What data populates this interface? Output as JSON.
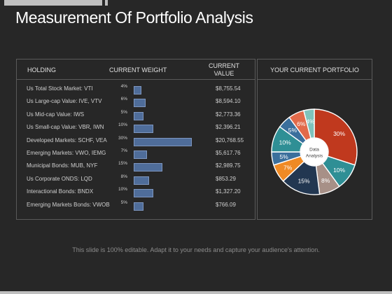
{
  "title": "Measurement Of Portfolio Analysis",
  "table": {
    "headers": {
      "holding": "HOLDING",
      "weight": "CURRENT WEIGHT",
      "value_line1": "CURRENT",
      "value_line2": "VALUE"
    },
    "rows": [
      {
        "holding": "Us Total Stock Market: VTI",
        "weight_label": "4%",
        "weight": 4,
        "value": "$8,755.54"
      },
      {
        "holding": "Us Large-cap Value: IVE, VTV",
        "weight_label": "6%",
        "weight": 6,
        "value": "$8,594.10"
      },
      {
        "holding": "Us Mid-cap Value: IWS",
        "weight_label": "5%",
        "weight": 5,
        "value": "$2,773.36"
      },
      {
        "holding": "Us Small-cap Value: VBR, IWN",
        "weight_label": "10%",
        "weight": 10,
        "value": "$2,396.21"
      },
      {
        "holding": "Developed Markets: SCHF, VEA",
        "weight_label": "30%",
        "weight": 30,
        "value": "$20,768.55"
      },
      {
        "holding": "Emerging Markets: VWO, IEMG",
        "weight_label": "7%",
        "weight": 7,
        "value": "$5,617.76"
      },
      {
        "holding": "Municipal Bonds: MUB, NYF",
        "weight_label": "15%",
        "weight": 15,
        "value": "$2,989.75"
      },
      {
        "holding": "Us Corporate ONDS: LQD",
        "weight_label": "8%",
        "weight": 8,
        "value": "$853.29"
      },
      {
        "holding": "Interactional Bonds: BNDX",
        "weight_label": "10%",
        "weight": 10,
        "value": "$1,327.20"
      },
      {
        "holding": "Emerging Markets Bonds: VWOB",
        "weight_label": "5%",
        "weight": 5,
        "value": "$766.09"
      }
    ]
  },
  "portfolio": {
    "header": "YOUR CURRENT PORTFOLIO",
    "center_line1": "Data",
    "center_line2": "Analysis"
  },
  "chart_data": [
    {
      "type": "bar",
      "orientation": "horizontal",
      "categories": [
        "Us Total Stock Market: VTI",
        "Us Large-cap Value: IVE, VTV",
        "Us Mid-cap Value: IWS",
        "Us Small-cap Value: VBR, IWN",
        "Developed Markets: SCHF, VEA",
        "Emerging Markets: VWO, IEMG",
        "Municipal Bonds: MUB, NYF",
        "Us Corporate ONDS: LQD",
        "Interactional Bonds: BNDX",
        "Emerging Markets Bonds: VWOB"
      ],
      "values": [
        4,
        6,
        5,
        10,
        30,
        7,
        15,
        8,
        10,
        5
      ],
      "color": "#4f6d9a"
    },
    {
      "type": "pie",
      "donut": true,
      "slices": [
        {
          "value": 30,
          "label": "30%",
          "color": "#c0391e"
        },
        {
          "value": 10,
          "label": "10%",
          "color": "#2f8f95"
        },
        {
          "value": 8,
          "label": "8%",
          "color": "#a79087"
        },
        {
          "value": 15,
          "label": "15%",
          "color": "#223751"
        },
        {
          "value": 7,
          "label": "7%",
          "color": "#ef8a25"
        },
        {
          "value": 5,
          "label": "5%",
          "color": "#3b6f9c"
        },
        {
          "value": 10,
          "label": "10%",
          "color": "#2f8f95"
        },
        {
          "value": 5,
          "label": "5%",
          "color": "#3b6f9c"
        },
        {
          "value": 6,
          "label": "6%",
          "color": "#e26a4a"
        },
        {
          "value": 4,
          "label": "4%",
          "color": "#7fc3bc"
        }
      ]
    }
  ],
  "footer": "This slide is 100% editable. Adapt it to your needs and capture your audience's attention."
}
